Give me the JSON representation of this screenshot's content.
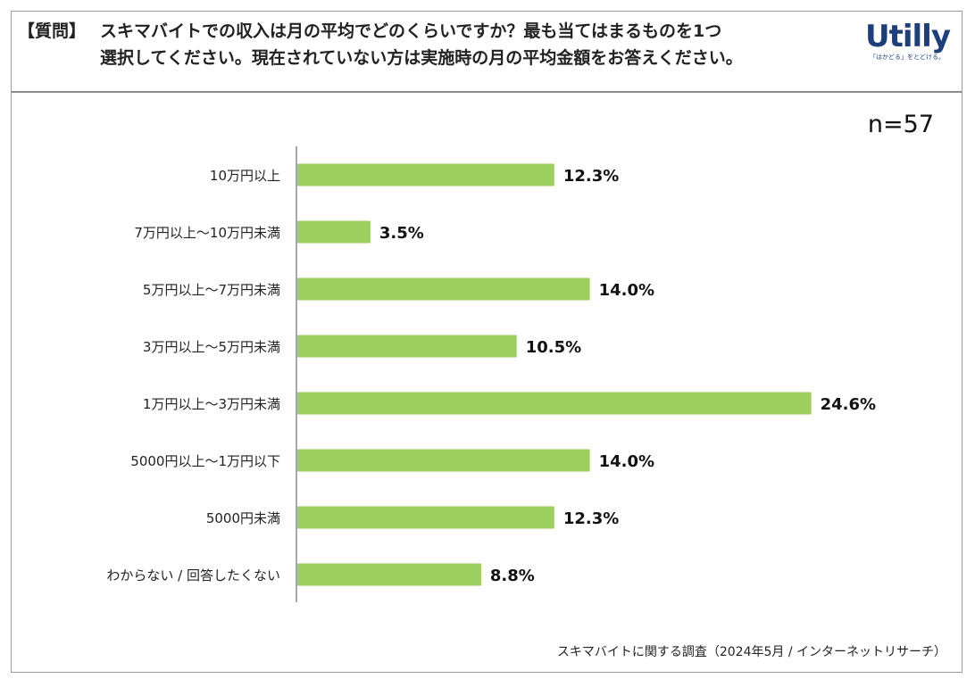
{
  "header": {
    "prefix": "【質問】",
    "line1": "スキマバイトでの収入は月の平均でどのくらいですか？最も当てはまるものを1つ",
    "line2": "選択してください。現在されていない方は実施時の月の平均金額をお答えください。"
  },
  "logo": {
    "word": "Utilly",
    "tagline": "「はかどる」をとどける。"
  },
  "n_label": "n=57",
  "source": "スキマバイトに関する調査（2024年5月 / インターネットリサーチ）",
  "colors": {
    "bar": "#9ccf5f",
    "axis": "#888888"
  },
  "chart_data": {
    "type": "bar",
    "orientation": "horizontal",
    "categories": [
      "10万円以上",
      "7万円以上～10万円未満",
      "5万円以上～7万円未満",
      "3万円以上～5万円未満",
      "1万円以上～3万円未満",
      "5000円以上～1万円以下",
      "5000円未満",
      "わからない / 回答したくない"
    ],
    "values": [
      12.3,
      3.5,
      14.0,
      10.5,
      24.6,
      14.0,
      12.3,
      8.8
    ],
    "value_labels": [
      "12.3%",
      "3.5%",
      "14.0%",
      "10.5%",
      "24.6%",
      "14.0%",
      "12.3%",
      "8.8%"
    ],
    "grid": false
  }
}
